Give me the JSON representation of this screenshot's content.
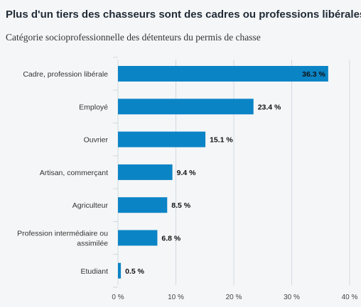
{
  "title": "Plus d'un tiers des chasseurs sont des cadres ou professions libérales",
  "subtitle": "Catégorie socioprofessionnelle des détenteurs du permis de chasse",
  "chart_data": {
    "type": "bar",
    "orientation": "horizontal",
    "categories": [
      "Cadre, profession libérale",
      "Employé",
      "Ouvrier",
      "Artisan, commerçant",
      "Agriculteur",
      "Profession intermédiaire ou assimilée",
      "Etudiant"
    ],
    "category_lines": [
      [
        "Cadre, profession libérale"
      ],
      [
        "Employé"
      ],
      [
        "Ouvrier"
      ],
      [
        "Artisan, commerçant"
      ],
      [
        "Agriculteur"
      ],
      [
        "Profession intermédiaire ou",
        "assimilée"
      ],
      [
        "Etudiant"
      ]
    ],
    "values": [
      36.3,
      23.4,
      15.1,
      9.4,
      8.5,
      6.8,
      0.5
    ],
    "value_labels": [
      "36.3 %",
      "23.4 %",
      "15.1 %",
      "9.4 %",
      "8.5 %",
      "6.8 %",
      "0.5 %"
    ],
    "xlim": [
      0,
      40
    ],
    "x_ticks": [
      0,
      10,
      20,
      30,
      40
    ],
    "x_tick_labels": [
      "0 %",
      "10 %",
      "20 %",
      "30 %",
      "40 %"
    ],
    "grid": true,
    "bar_color": "#0b84c6",
    "grid_color": "#cfd9e3"
  }
}
